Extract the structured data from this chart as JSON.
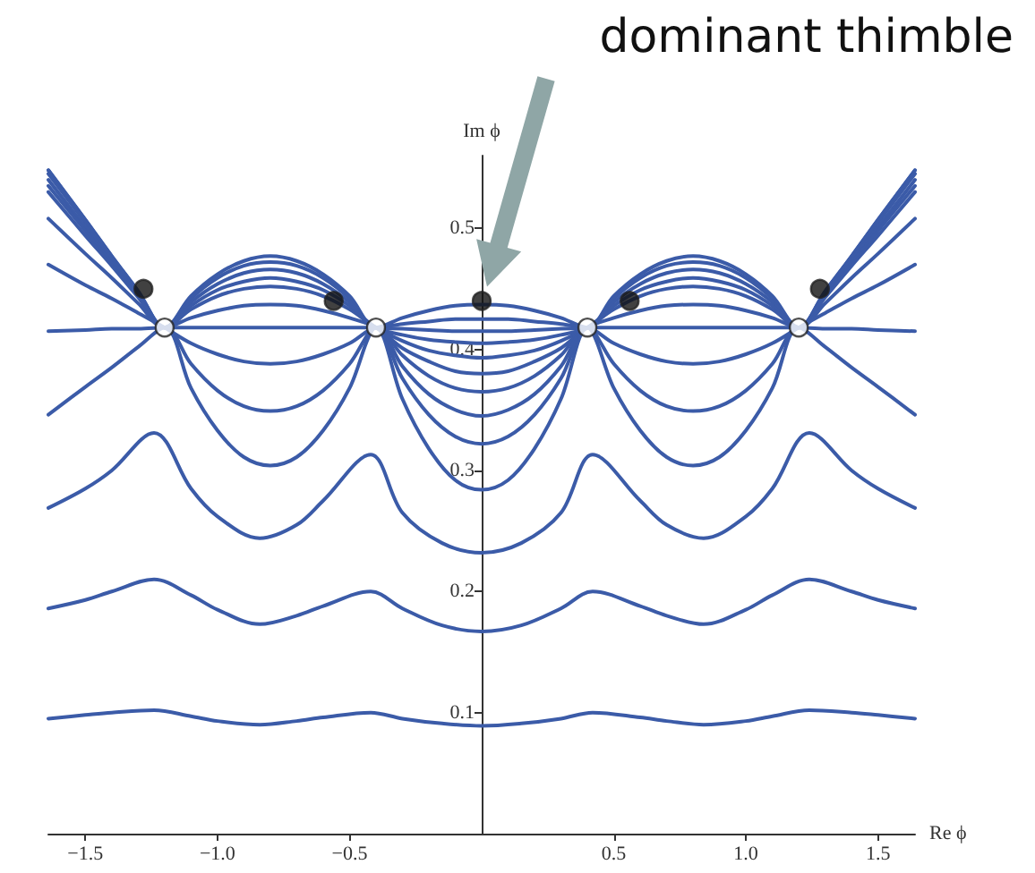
{
  "chart_data": {
    "type": "line",
    "xlabel": "Re ϕ",
    "ylabel": "Im ϕ",
    "annotations": [
      "dominant thimble"
    ],
    "xlim": [
      -1.64,
      1.64
    ],
    "ylim": [
      0,
      0.56
    ],
    "xticks": [
      {
        "value": -1.5,
        "label": "−1.5"
      },
      {
        "value": -1,
        "label": "−1.0"
      },
      {
        "value": -0.5,
        "label": "−0.5"
      },
      0.5,
      {
        "value": 1,
        "label": "1.0"
      },
      1.5
    ],
    "yticks": [
      0.1,
      0.2,
      0.3,
      0.4,
      0.5
    ],
    "line_style": "solid",
    "x": [
      -1.64,
      -1.5,
      -1.4,
      -1.3,
      -1.2,
      -1.1,
      -1.0,
      -0.9,
      -0.8,
      -0.7,
      -0.6,
      -0.5,
      -0.4,
      -0.3,
      -0.2,
      -0.1,
      0,
      0.1,
      0.2,
      0.3,
      0.4,
      0.5,
      0.6,
      0.7,
      0.8,
      0.9,
      1.0,
      1.1,
      1.2,
      1.3,
      1.4,
      1.5,
      1.64
    ],
    "series": [
      {
        "color": "#3b5ba8",
        "values": [
          0.548,
          0.507,
          0.477,
          0.448,
          0.418,
          0.444,
          0.462,
          0.473,
          0.477,
          0.473,
          0.462,
          0.444,
          0.418,
          0.426,
          0.432,
          0.436,
          0.437,
          0.436,
          0.432,
          0.426,
          0.418,
          0.444,
          0.462,
          0.473,
          0.477,
          0.473,
          0.462,
          0.444,
          0.418,
          0.448,
          0.477,
          0.507,
          0.548
        ]
      },
      {
        "color": "#3b5ba8",
        "values": [
          0.548,
          0.507,
          0.477,
          0.448,
          0.418,
          0.442,
          0.459,
          0.469,
          0.472,
          0.469,
          0.459,
          0.442,
          0.418,
          0.421,
          0.423,
          0.425,
          0.425,
          0.425,
          0.423,
          0.421,
          0.418,
          0.442,
          0.459,
          0.469,
          0.472,
          0.469,
          0.459,
          0.442,
          0.418,
          0.448,
          0.477,
          0.507,
          0.548
        ]
      },
      {
        "color": "#3b5ba8",
        "values": [
          0.545,
          0.505,
          0.476,
          0.447,
          0.418,
          0.439,
          0.454,
          0.463,
          0.466,
          0.463,
          0.454,
          0.439,
          0.418,
          0.417,
          0.416,
          0.415,
          0.415,
          0.415,
          0.416,
          0.417,
          0.418,
          0.439,
          0.454,
          0.463,
          0.466,
          0.463,
          0.454,
          0.439,
          0.418,
          0.447,
          0.476,
          0.505,
          0.545
        ]
      },
      {
        "color": "#3b5ba8",
        "values": [
          0.54,
          0.501,
          0.474,
          0.446,
          0.418,
          0.436,
          0.449,
          0.456,
          0.459,
          0.456,
          0.449,
          0.436,
          0.418,
          0.412,
          0.408,
          0.406,
          0.405,
          0.406,
          0.408,
          0.412,
          0.418,
          0.436,
          0.449,
          0.456,
          0.459,
          0.456,
          0.449,
          0.436,
          0.418,
          0.446,
          0.474,
          0.501,
          0.54
        ]
      },
      {
        "color": "#3b5ba8",
        "values": [
          0.535,
          0.498,
          0.471,
          0.445,
          0.418,
          0.433,
          0.444,
          0.45,
          0.452,
          0.45,
          0.444,
          0.433,
          0.418,
          0.407,
          0.399,
          0.395,
          0.393,
          0.395,
          0.399,
          0.407,
          0.418,
          0.433,
          0.444,
          0.45,
          0.452,
          0.45,
          0.444,
          0.433,
          0.418,
          0.445,
          0.471,
          0.498,
          0.535
        ]
      },
      {
        "color": "#3b5ba8",
        "values": [
          0.53,
          0.494,
          0.469,
          0.443,
          0.418,
          0.426,
          0.432,
          0.436,
          0.437,
          0.436,
          0.432,
          0.426,
          0.418,
          0.401,
          0.39,
          0.382,
          0.38,
          0.382,
          0.39,
          0.401,
          0.418,
          0.426,
          0.432,
          0.436,
          0.437,
          0.436,
          0.432,
          0.426,
          0.418,
          0.443,
          0.469,
          0.494,
          0.53
        ]
      },
      {
        "color": "#3b5ba8",
        "values": [
          0.508,
          0.479,
          0.459,
          0.438,
          0.418,
          0.418,
          0.418,
          0.418,
          0.418,
          0.418,
          0.418,
          0.418,
          0.418,
          0.395,
          0.378,
          0.368,
          0.365,
          0.368,
          0.378,
          0.395,
          0.418,
          0.418,
          0.418,
          0.418,
          0.418,
          0.418,
          0.418,
          0.418,
          0.418,
          0.438,
          0.459,
          0.479,
          0.508
        ]
      },
      {
        "color": "#3b5ba8",
        "values": [
          0.47,
          0.453,
          0.442,
          0.43,
          0.418,
          0.405,
          0.396,
          0.39,
          0.388,
          0.39,
          0.396,
          0.405,
          0.418,
          0.386,
          0.363,
          0.35,
          0.345,
          0.35,
          0.363,
          0.386,
          0.418,
          0.405,
          0.396,
          0.39,
          0.388,
          0.39,
          0.396,
          0.405,
          0.418,
          0.43,
          0.442,
          0.453,
          0.47
        ]
      },
      {
        "color": "#3b5ba8",
        "values": [
          0.415,
          0.416,
          0.417,
          0.417,
          0.418,
          0.388,
          0.366,
          0.353,
          0.349,
          0.353,
          0.366,
          0.388,
          0.418,
          0.376,
          0.346,
          0.328,
          0.322,
          0.328,
          0.346,
          0.376,
          0.418,
          0.388,
          0.366,
          0.353,
          0.349,
          0.353,
          0.366,
          0.388,
          0.418,
          0.417,
          0.417,
          0.416,
          0.415
        ]
      },
      {
        "color": "#3b5ba8",
        "values": [
          0.346,
          0.369,
          0.385,
          0.402,
          0.418,
          0.368,
          0.333,
          0.311,
          0.304,
          0.311,
          0.333,
          0.368,
          0.418,
          0.359,
          0.318,
          0.292,
          0.284,
          0.292,
          0.318,
          0.359,
          0.418,
          0.368,
          0.333,
          0.311,
          0.304,
          0.311,
          0.333,
          0.368,
          0.418,
          0.402,
          0.385,
          0.369,
          0.346
        ]
      },
      {
        "color": "#3b5ba8",
        "x": [
          -1.64,
          -1.5,
          -1.4,
          -1.24,
          -1.1,
          -1.0,
          -0.84,
          -0.7,
          -0.6,
          -0.42,
          -0.3,
          -0.15,
          0,
          0.15,
          0.3,
          0.42,
          0.6,
          0.7,
          0.84,
          1.0,
          1.1,
          1.24,
          1.4,
          1.5,
          1.64
        ],
        "values": [
          0.269,
          0.285,
          0.3,
          0.331,
          0.285,
          0.262,
          0.244,
          0.255,
          0.275,
          0.313,
          0.265,
          0.24,
          0.232,
          0.24,
          0.265,
          0.313,
          0.275,
          0.255,
          0.244,
          0.262,
          0.285,
          0.331,
          0.3,
          0.285,
          0.269
        ]
      },
      {
        "color": "#3b5ba8",
        "x": [
          -1.64,
          -1.5,
          -1.4,
          -1.24,
          -1.1,
          -1.0,
          -0.84,
          -0.7,
          -0.6,
          -0.42,
          -0.3,
          -0.15,
          0,
          0.15,
          0.3,
          0.42,
          0.6,
          0.7,
          0.84,
          1.0,
          1.1,
          1.24,
          1.4,
          1.5,
          1.64
        ],
        "values": [
          0.186,
          0.193,
          0.2,
          0.21,
          0.197,
          0.185,
          0.173,
          0.18,
          0.188,
          0.2,
          0.186,
          0.172,
          0.167,
          0.172,
          0.186,
          0.2,
          0.188,
          0.18,
          0.173,
          0.185,
          0.197,
          0.21,
          0.2,
          0.193,
          0.186
        ]
      },
      {
        "color": "#3b5ba8",
        "x": [
          -1.64,
          -1.5,
          -1.4,
          -1.24,
          -1.1,
          -1.0,
          -0.84,
          -0.7,
          -0.6,
          -0.42,
          -0.3,
          -0.15,
          0,
          0.15,
          0.3,
          0.42,
          0.6,
          0.7,
          0.84,
          1.0,
          1.1,
          1.24,
          1.4,
          1.5,
          1.64
        ],
        "values": [
          0.095,
          0.098,
          0.1,
          0.102,
          0.097,
          0.093,
          0.09,
          0.093,
          0.096,
          0.1,
          0.095,
          0.091,
          0.089,
          0.091,
          0.095,
          0.1,
          0.096,
          0.093,
          0.09,
          0.093,
          0.097,
          0.102,
          0.1,
          0.098,
          0.095
        ]
      },
      {
        "type": "scatter",
        "marker": "circle",
        "color": "#ffffff",
        "x": [
          -1.2,
          -0.4,
          0.4,
          1.2
        ],
        "values": [
          0.418,
          0.418,
          0.418,
          0.418
        ]
      },
      {
        "type": "scatter",
        "marker": "circle",
        "color": "#111111",
        "x": [
          -1.28,
          -0.56,
          0,
          0.56,
          1.28
        ],
        "values": [
          0.45,
          0.44,
          0.44,
          0.44,
          0.45
        ]
      }
    ]
  }
}
